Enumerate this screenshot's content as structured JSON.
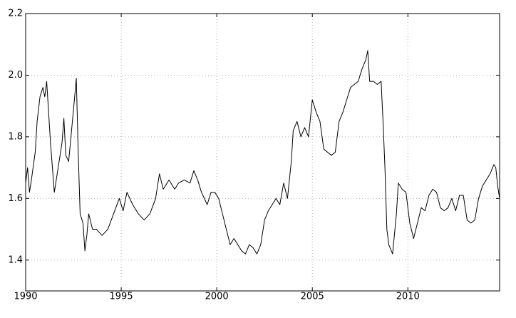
{
  "chart_data": {
    "type": "line",
    "color": "#000000",
    "grid": true,
    "x": [
      1990.0,
      1990.1,
      1990.2,
      1990.3,
      1990.5,
      1990.6,
      1990.75,
      1990.9,
      1991.0,
      1991.1,
      1991.2,
      1991.3,
      1991.4,
      1991.5,
      1991.6,
      1991.75,
      1991.9,
      1992.0,
      1992.1,
      1992.25,
      1992.4,
      1992.55,
      1992.65,
      1992.75,
      1992.85,
      1993.0,
      1993.1,
      1993.2,
      1993.3,
      1993.5,
      1993.7,
      1994.0,
      1994.3,
      1994.6,
      1994.9,
      1995.1,
      1995.3,
      1995.6,
      1995.9,
      1996.2,
      1996.5,
      1996.8,
      1997.0,
      1997.2,
      1997.5,
      1997.8,
      1998.0,
      1998.3,
      1998.6,
      1998.8,
      1999.0,
      1999.2,
      1999.5,
      1999.7,
      1999.9,
      2000.1,
      2000.3,
      2000.5,
      2000.7,
      2000.9,
      2001.1,
      2001.3,
      2001.5,
      2001.7,
      2001.9,
      2002.1,
      2002.3,
      2002.5,
      2002.7,
      2002.9,
      2003.1,
      2003.3,
      2003.5,
      2003.7,
      2003.9,
      2004.0,
      2004.2,
      2004.4,
      2004.6,
      2004.8,
      2005.0,
      2005.2,
      2005.4,
      2005.6,
      2005.8,
      2006.0,
      2006.2,
      2006.4,
      2006.6,
      2006.8,
      2007.0,
      2007.2,
      2007.4,
      2007.6,
      2007.8,
      2007.9,
      2008.0,
      2008.2,
      2008.4,
      2008.6,
      2008.7,
      2008.8,
      2008.9,
      2009.0,
      2009.2,
      2009.4,
      2009.5,
      2009.7,
      2009.9,
      2010.1,
      2010.3,
      2010.5,
      2010.7,
      2010.9,
      2011.1,
      2011.3,
      2011.5,
      2011.7,
      2011.9,
      2012.1,
      2012.3,
      2012.5,
      2012.7,
      2012.9,
      2013.1,
      2013.3,
      2013.5,
      2013.7,
      2013.9,
      2014.1,
      2014.3,
      2014.5,
      2014.6,
      2014.7,
      2014.8
    ],
    "values": [
      1.65,
      1.7,
      1.62,
      1.66,
      1.75,
      1.85,
      1.93,
      1.96,
      1.93,
      1.98,
      1.88,
      1.78,
      1.7,
      1.62,
      1.66,
      1.72,
      1.78,
      1.86,
      1.74,
      1.72,
      1.82,
      1.92,
      1.99,
      1.75,
      1.55,
      1.52,
      1.43,
      1.48,
      1.55,
      1.5,
      1.5,
      1.48,
      1.5,
      1.55,
      1.6,
      1.56,
      1.62,
      1.58,
      1.55,
      1.53,
      1.55,
      1.6,
      1.68,
      1.63,
      1.66,
      1.63,
      1.65,
      1.66,
      1.65,
      1.69,
      1.66,
      1.62,
      1.58,
      1.62,
      1.62,
      1.6,
      1.55,
      1.5,
      1.45,
      1.47,
      1.45,
      1.43,
      1.42,
      1.45,
      1.44,
      1.42,
      1.45,
      1.53,
      1.56,
      1.58,
      1.6,
      1.58,
      1.65,
      1.6,
      1.72,
      1.82,
      1.85,
      1.8,
      1.83,
      1.8,
      1.92,
      1.88,
      1.85,
      1.76,
      1.75,
      1.74,
      1.75,
      1.85,
      1.88,
      1.92,
      1.96,
      1.97,
      1.98,
      2.02,
      2.05,
      2.08,
      1.98,
      1.98,
      1.97,
      1.98,
      1.85,
      1.7,
      1.5,
      1.45,
      1.42,
      1.55,
      1.65,
      1.63,
      1.62,
      1.52,
      1.47,
      1.52,
      1.57,
      1.56,
      1.61,
      1.63,
      1.62,
      1.57,
      1.56,
      1.57,
      1.6,
      1.56,
      1.61,
      1.61,
      1.53,
      1.52,
      1.53,
      1.6,
      1.64,
      1.66,
      1.68,
      1.71,
      1.7,
      1.64,
      1.6
    ],
    "xlim": [
      1990,
      2014.8
    ],
    "xticks": [
      1990,
      1995,
      2000,
      2005,
      2010
    ],
    "ylim": [
      1.3,
      2.2
    ],
    "yticks": [
      1.4,
      1.6,
      1.8,
      {
        "value": 2,
        "label": "2.0"
      },
      2.2
    ]
  }
}
